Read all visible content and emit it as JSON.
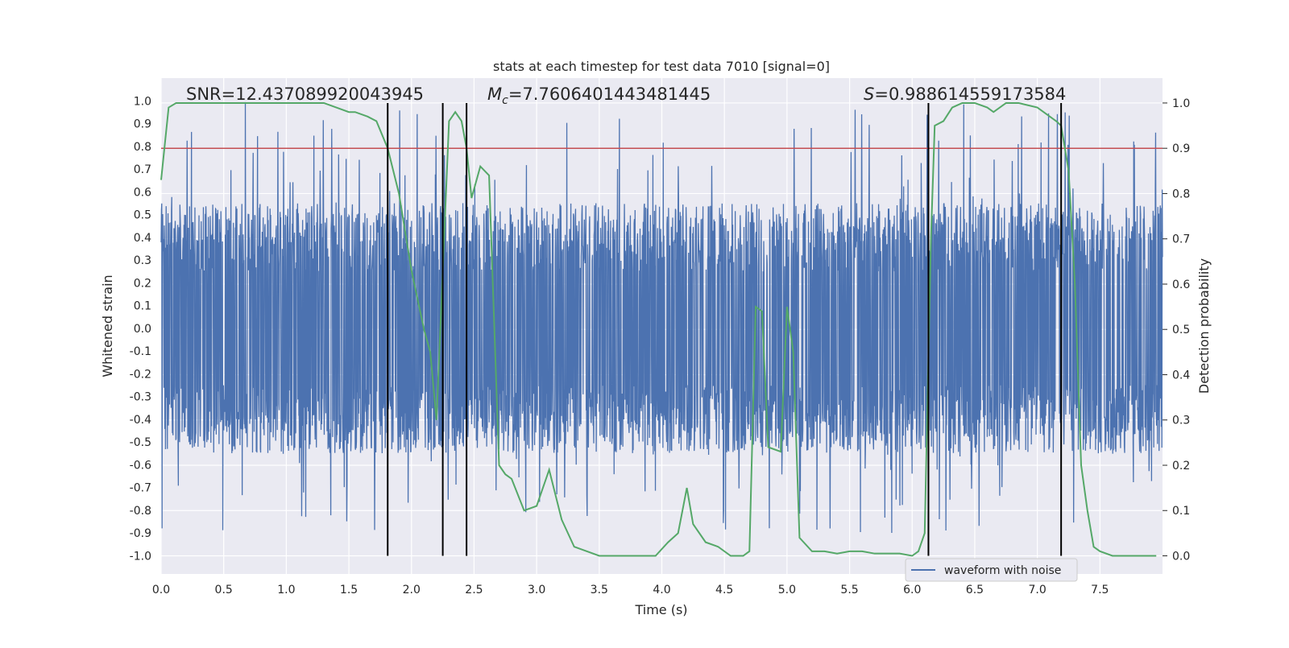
{
  "chart_data": {
    "type": "line",
    "title": "stats at each timestep for test data 7010 [signal=0]",
    "xlabel": "Time (s)",
    "ylabel_left": "Whitened strain",
    "ylabel_right": "Detection probability",
    "xlim": [
      0.0,
      8.0
    ],
    "ylim_left": [
      -1.08,
      1.1
    ],
    "ylim_right": [
      -0.04,
      1.055
    ],
    "x_ticks": [
      "0.0",
      "0.5",
      "1.0",
      "1.5",
      "2.0",
      "2.5",
      "3.0",
      "3.5",
      "4.0",
      "4.5",
      "5.0",
      "5.5",
      "6.0",
      "6.5",
      "7.0",
      "7.5"
    ],
    "y_ticks_left": [
      "1.0",
      "0.9",
      "0.8",
      "0.7",
      "0.6",
      "0.5",
      "0.4",
      "0.3",
      "0.2",
      "0.1",
      "0.0",
      "-0.1",
      "-0.2",
      "-0.3",
      "-0.4",
      "-0.5",
      "-0.6",
      "-0.7",
      "-0.8",
      "-0.9",
      "-1.0"
    ],
    "y_ticks_right": [
      "1.0",
      "0.9",
      "0.8",
      "0.7",
      "0.6",
      "0.5",
      "0.4",
      "0.3",
      "0.2",
      "0.1",
      "0.0"
    ],
    "annotations": {
      "snr": "SNR=12.437089920043945",
      "mc_symbol": "M",
      "mc_sub": "c",
      "mc_value": "=7.7606401443481445",
      "s_symbol": "S",
      "s_value": "=0.988614559173584"
    },
    "threshold": {
      "axis": "right",
      "value": 0.9,
      "color": "#c44e52"
    },
    "vertical_lines": [
      1.81,
      2.25,
      2.44,
      6.13,
      7.19
    ],
    "legend": {
      "label": "waveform with noise",
      "placement": "lower-right"
    },
    "grid": true,
    "series": [
      {
        "name": "waveform with noise",
        "axis": "left",
        "color": "#4c72b0",
        "style": "dense noise trace",
        "x_range": [
          0.0,
          8.0
        ],
        "envelope": [
          -0.4,
          0.4
        ],
        "peak_max": 1.0,
        "peak_min": -0.9
      },
      {
        "axis": "right",
        "color": "#55a868",
        "x": [
          0.0,
          0.06,
          0.12,
          0.3,
          0.6,
          1.0,
          1.3,
          1.4,
          1.5,
          1.55,
          1.65,
          1.72,
          1.81,
          1.9,
          2.0,
          2.1,
          2.15,
          2.2,
          2.3,
          2.35,
          2.4,
          2.44,
          2.48,
          2.55,
          2.62,
          2.7,
          2.75,
          2.8,
          2.9,
          3.0,
          3.1,
          3.2,
          3.3,
          3.4,
          3.5,
          3.7,
          3.9,
          3.95,
          4.05,
          4.13,
          4.2,
          4.25,
          4.35,
          4.45,
          4.55,
          4.65,
          4.7,
          4.75,
          4.8,
          4.85,
          4.95,
          5.0,
          5.05,
          5.1,
          5.2,
          5.3,
          5.4,
          5.5,
          5.6,
          5.7,
          5.8,
          5.9,
          6.0,
          6.05,
          6.1,
          6.15,
          6.18,
          6.25,
          6.32,
          6.4,
          6.5,
          6.6,
          6.65,
          6.75,
          6.85,
          7.0,
          7.1,
          7.15,
          7.19,
          7.25,
          7.3,
          7.35,
          7.4,
          7.45,
          7.5,
          7.6,
          7.7,
          7.85,
          7.95
        ],
        "values": [
          0.83,
          0.99,
          1.0,
          1.0,
          1.0,
          1.0,
          1.0,
          0.99,
          0.98,
          0.98,
          0.97,
          0.96,
          0.9,
          0.8,
          0.63,
          0.5,
          0.45,
          0.3,
          0.96,
          0.98,
          0.96,
          0.9,
          0.79,
          0.86,
          0.84,
          0.2,
          0.18,
          0.17,
          0.1,
          0.11,
          0.19,
          0.08,
          0.02,
          0.01,
          0.0,
          0.0,
          0.0,
          0.0,
          0.03,
          0.05,
          0.15,
          0.07,
          0.03,
          0.02,
          0.0,
          0.0,
          0.01,
          0.55,
          0.54,
          0.24,
          0.23,
          0.55,
          0.45,
          0.04,
          0.01,
          0.01,
          0.005,
          0.01,
          0.01,
          0.005,
          0.005,
          0.005,
          0.0,
          0.01,
          0.05,
          0.7,
          0.95,
          0.96,
          0.99,
          1.0,
          1.0,
          0.99,
          0.98,
          1.0,
          1.0,
          0.99,
          0.97,
          0.96,
          0.95,
          0.85,
          0.6,
          0.2,
          0.1,
          0.02,
          0.01,
          0.0,
          0.0,
          0.0,
          0.0
        ]
      }
    ]
  }
}
